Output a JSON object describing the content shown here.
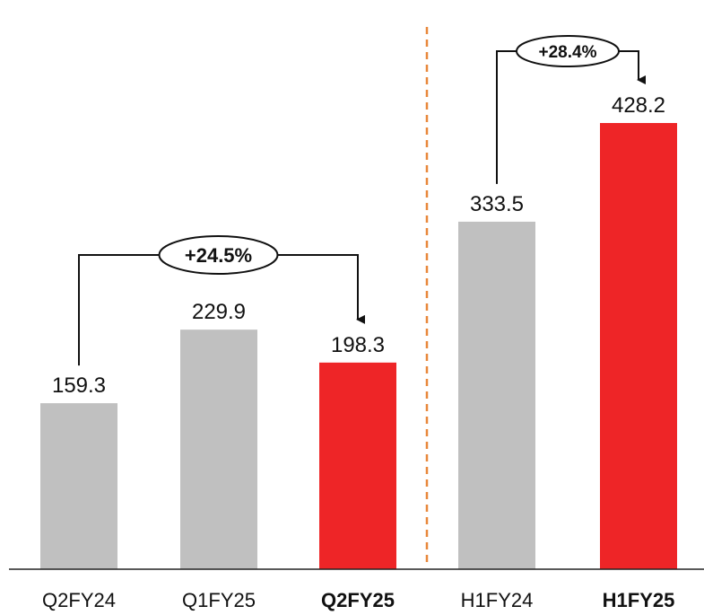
{
  "chart_data": {
    "type": "bar",
    "categories": [
      "Q2FY24",
      "Q1FY25",
      "Q2FY25",
      "H1FY24",
      "H1FY25"
    ],
    "values": [
      159.3,
      229.9,
      198.3,
      333.5,
      428.2
    ],
    "value_labels": [
      "159.3",
      "229.9",
      "198.3",
      "333.5",
      "428.2"
    ],
    "highlighted": [
      false,
      false,
      true,
      false,
      true
    ],
    "colors": {
      "default": "#c0c0c0",
      "highlight": "#ee2527",
      "divider": "#e8873a",
      "axis": "#222222"
    },
    "ylim": [
      0,
      500
    ],
    "grid": false,
    "title": "",
    "xlabel": "",
    "ylabel": "",
    "annotations": [
      {
        "text": "+24.5%",
        "from": "Q2FY24",
        "to": "Q2FY25"
      },
      {
        "text": "+28.4%",
        "from": "H1FY24",
        "to": "H1FY25"
      }
    ]
  }
}
